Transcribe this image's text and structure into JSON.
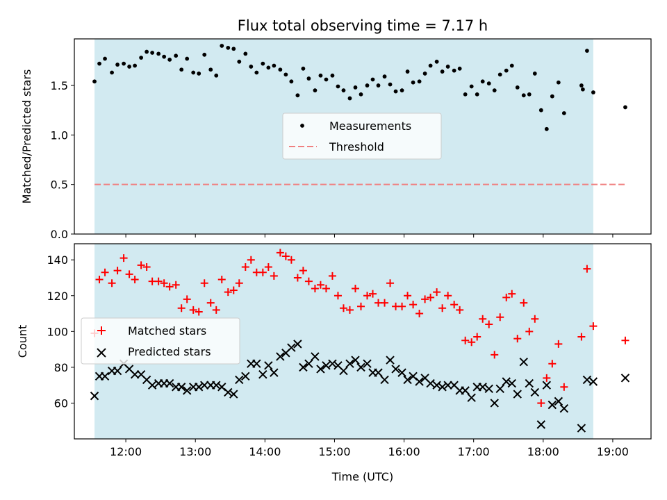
{
  "chart_data": [
    {
      "type": "scatter",
      "title": "Flux total observing time = 7.17 h",
      "xlabel": "",
      "ylabel": "Matched/Predicted stars",
      "x_unit": "hours (UTC)",
      "xlim": [
        11.26,
        19.55
      ],
      "ylim": [
        0,
        1.97
      ],
      "ytick_labels": [
        "0.0",
        "0.5",
        "1.0",
        "1.5"
      ],
      "observing_window": {
        "start": 11.55,
        "end": 18.72,
        "color": "#add8e6"
      },
      "legend_position": "center",
      "legend": {
        "measurements": "Measurements",
        "threshold": "Threshold"
      },
      "threshold": {
        "value": 0.5,
        "x_start": 11.55,
        "x_end": 19.18,
        "color": "#f08080"
      },
      "series": [
        {
          "name": "Measurements",
          "color": "#000000",
          "x": [
            11.55,
            11.62,
            11.7,
            11.8,
            11.88,
            11.97,
            12.05,
            12.13,
            12.22,
            12.3,
            12.38,
            12.47,
            12.55,
            12.63,
            12.72,
            12.8,
            12.88,
            12.97,
            13.05,
            13.13,
            13.22,
            13.3,
            13.38,
            13.47,
            13.55,
            13.63,
            13.72,
            13.8,
            13.88,
            13.97,
            14.05,
            14.13,
            14.22,
            14.3,
            14.38,
            14.47,
            14.55,
            14.63,
            14.72,
            14.8,
            14.88,
            14.97,
            15.05,
            15.13,
            15.22,
            15.3,
            15.38,
            15.47,
            15.55,
            15.63,
            15.72,
            15.8,
            15.88,
            15.97,
            16.05,
            16.13,
            16.22,
            16.3,
            16.38,
            16.47,
            16.55,
            16.63,
            16.72,
            16.8,
            16.88,
            16.97,
            17.05,
            17.13,
            17.22,
            17.3,
            17.38,
            17.47,
            17.55,
            17.63,
            17.72,
            17.8,
            17.88,
            17.97,
            18.05,
            18.13,
            18.22,
            18.3,
            18.55,
            18.57,
            18.63,
            18.72,
            19.18
          ],
          "y": [
            1.54,
            1.72,
            1.77,
            1.63,
            1.71,
            1.72,
            1.69,
            1.7,
            1.78,
            1.84,
            1.83,
            1.82,
            1.79,
            1.76,
            1.8,
            1.66,
            1.77,
            1.63,
            1.62,
            1.81,
            1.66,
            1.6,
            1.9,
            1.88,
            1.87,
            1.74,
            1.82,
            1.69,
            1.63,
            1.72,
            1.68,
            1.7,
            1.66,
            1.61,
            1.54,
            1.4,
            1.67,
            1.57,
            1.45,
            1.6,
            1.56,
            1.6,
            1.49,
            1.45,
            1.37,
            1.48,
            1.41,
            1.5,
            1.56,
            1.5,
            1.59,
            1.51,
            1.44,
            1.45,
            1.64,
            1.53,
            1.54,
            1.62,
            1.7,
            1.74,
            1.64,
            1.69,
            1.65,
            1.67,
            1.41,
            1.49,
            1.41,
            1.54,
            1.52,
            1.45,
            1.61,
            1.65,
            1.7,
            1.48,
            1.4,
            1.41,
            1.62,
            1.25,
            1.06,
            1.39,
            1.53,
            1.22,
            1.5,
            1.46,
            1.85,
            1.43,
            1.28
          ]
        }
      ]
    },
    {
      "type": "scatter",
      "title": "",
      "xlabel": "Time (UTC)",
      "ylabel": "Count",
      "x_unit": "hours (UTC)",
      "xlim": [
        11.26,
        19.55
      ],
      "ylim": [
        40,
        149
      ],
      "xtick_values": [
        12,
        13,
        14,
        15,
        16,
        17,
        18,
        19
      ],
      "xtick_labels": [
        "12:00",
        "13:00",
        "14:00",
        "15:00",
        "16:00",
        "17:00",
        "18:00",
        "19:00"
      ],
      "ytick_values": [
        60,
        80,
        100,
        120,
        140
      ],
      "ytick_labels": [
        "60",
        "80",
        "100",
        "120",
        "140"
      ],
      "observing_window": {
        "start": 11.55,
        "end": 18.72,
        "color": "#add8e6"
      },
      "legend_position": "center-left",
      "series": [
        {
          "name": "Matched stars",
          "color": "#ff0000",
          "marker": "plus",
          "x": [
            11.55,
            11.62,
            11.7,
            11.8,
            11.88,
            11.97,
            12.05,
            12.13,
            12.22,
            12.3,
            12.38,
            12.47,
            12.55,
            12.63,
            12.72,
            12.8,
            12.88,
            12.97,
            13.05,
            13.13,
            13.22,
            13.3,
            13.38,
            13.47,
            13.55,
            13.63,
            13.72,
            13.8,
            13.88,
            13.97,
            14.05,
            14.13,
            14.22,
            14.3,
            14.38,
            14.47,
            14.55,
            14.63,
            14.72,
            14.8,
            14.88,
            14.97,
            15.05,
            15.13,
            15.22,
            15.3,
            15.38,
            15.47,
            15.55,
            15.63,
            15.72,
            15.8,
            15.88,
            15.97,
            16.05,
            16.13,
            16.22,
            16.3,
            16.38,
            16.47,
            16.55,
            16.63,
            16.72,
            16.8,
            16.88,
            16.97,
            17.05,
            17.13,
            17.22,
            17.3,
            17.38,
            17.47,
            17.55,
            17.63,
            17.72,
            17.8,
            17.88,
            17.97,
            18.05,
            18.13,
            18.22,
            18.3,
            18.55,
            18.63,
            18.72,
            19.18
          ],
          "y": [
            99,
            129,
            133,
            127,
            134,
            141,
            132,
            129,
            137,
            136,
            128,
            128,
            127,
            125,
            126,
            113,
            118,
            112,
            111,
            127,
            116,
            112,
            129,
            122,
            123,
            127,
            136,
            140,
            133,
            133,
            136,
            131,
            144,
            142,
            140,
            130,
            134,
            128,
            124,
            126,
            124,
            131,
            120,
            113,
            112,
            124,
            114,
            120,
            121,
            116,
            116,
            127,
            114,
            114,
            120,
            115,
            110,
            118,
            119,
            122,
            113,
            120,
            115,
            112,
            95,
            94,
            97,
            107,
            104,
            87,
            108,
            119,
            121,
            96,
            116,
            100,
            107,
            60,
            74,
            82,
            93,
            69,
            97,
            135,
            103,
            95
          ]
        },
        {
          "name": "Predicted stars",
          "color": "#000000",
          "marker": "x",
          "x": [
            11.55,
            11.62,
            11.7,
            11.8,
            11.88,
            11.97,
            12.05,
            12.13,
            12.22,
            12.3,
            12.38,
            12.47,
            12.55,
            12.63,
            12.72,
            12.8,
            12.88,
            12.97,
            13.05,
            13.13,
            13.22,
            13.3,
            13.38,
            13.47,
            13.55,
            13.63,
            13.72,
            13.8,
            13.88,
            13.97,
            14.05,
            14.13,
            14.22,
            14.3,
            14.38,
            14.47,
            14.55,
            14.63,
            14.72,
            14.8,
            14.88,
            14.97,
            15.05,
            15.13,
            15.22,
            15.3,
            15.38,
            15.47,
            15.55,
            15.63,
            15.72,
            15.8,
            15.88,
            15.97,
            16.05,
            16.13,
            16.22,
            16.3,
            16.38,
            16.47,
            16.55,
            16.63,
            16.72,
            16.8,
            16.88,
            16.97,
            17.05,
            17.13,
            17.22,
            17.3,
            17.38,
            17.47,
            17.55,
            17.63,
            17.72,
            17.8,
            17.88,
            17.97,
            18.05,
            18.13,
            18.22,
            18.3,
            18.55,
            18.63,
            18.72,
            19.18
          ],
          "y": [
            64,
            75,
            75,
            78,
            78,
            82,
            79,
            76,
            76,
            73,
            70,
            71,
            71,
            71,
            69,
            69,
            67,
            69,
            69,
            70,
            70,
            70,
            69,
            66,
            65,
            73,
            75,
            82,
            82,
            76,
            81,
            77,
            86,
            88,
            91,
            93,
            80,
            82,
            86,
            79,
            81,
            82,
            81,
            78,
            82,
            84,
            80,
            82,
            77,
            77,
            73,
            84,
            79,
            77,
            73,
            75,
            72,
            74,
            71,
            70,
            69,
            70,
            70,
            67,
            67,
            63,
            69,
            69,
            68,
            60,
            68,
            72,
            71,
            65,
            83,
            71,
            66,
            48,
            70,
            59,
            61,
            57,
            46,
            73,
            72,
            74
          ]
        }
      ]
    }
  ]
}
